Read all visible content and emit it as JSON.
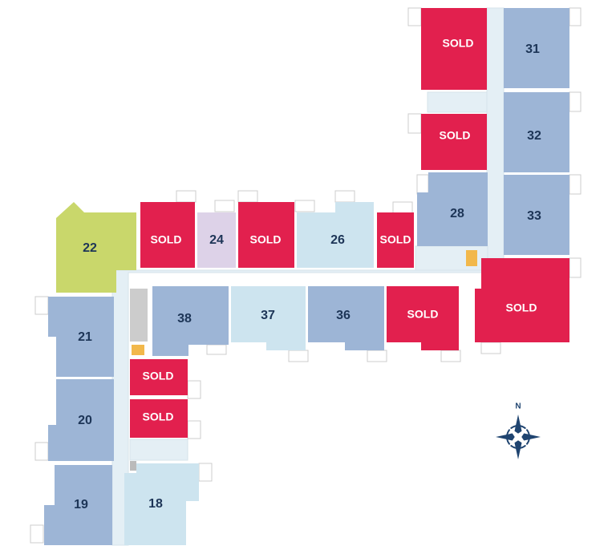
{
  "units": [
    {
      "label": "SOLD",
      "color": "#e2204e"
    },
    {
      "label": "31",
      "color": "#9db5d6"
    },
    {
      "label": "SOLD",
      "color": "#e2204e"
    },
    {
      "label": "32",
      "color": "#9db5d6"
    },
    {
      "label": "28",
      "color": "#9db5d6"
    },
    {
      "label": "33",
      "color": "#9db5d6"
    },
    {
      "label": "22",
      "color": "#c9d76b"
    },
    {
      "label": "SOLD",
      "color": "#e2204e"
    },
    {
      "label": "24",
      "color": "#ddd2e8"
    },
    {
      "label": "SOLD",
      "color": "#e2204e"
    },
    {
      "label": "26",
      "color": "#cde4ef"
    },
    {
      "label": "SOLD",
      "color": "#e2204e"
    },
    {
      "label": "SOLD",
      "color": "#e2204e"
    },
    {
      "label": "38",
      "color": "#9db5d6"
    },
    {
      "label": "37",
      "color": "#cde4ef"
    },
    {
      "label": "36",
      "color": "#9db5d6"
    },
    {
      "label": "SOLD",
      "color": "#e2204e"
    },
    {
      "label": "21",
      "color": "#9db5d6"
    },
    {
      "label": "SOLD",
      "color": "#e2204e"
    },
    {
      "label": "SOLD",
      "color": "#e2204e"
    },
    {
      "label": "20",
      "color": "#9db5d6"
    },
    {
      "label": "19",
      "color": "#9db5d6"
    },
    {
      "label": "18",
      "color": "#cde4ef"
    }
  ],
  "compass": "N"
}
